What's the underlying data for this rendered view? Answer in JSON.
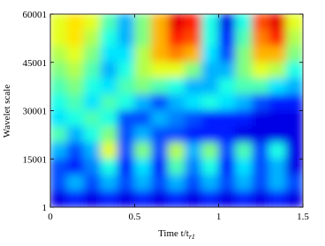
{
  "chart_data": {
    "type": "heatmap",
    "colormap": "jet",
    "xlabel": "Time t/t",
    "xlabel_subscript": "r1",
    "ylabel": "Wavelet scale",
    "xlim": [
      0,
      1.5
    ],
    "xticks": [
      0,
      0.5,
      1,
      1.5
    ],
    "ylim": [
      1,
      60001
    ],
    "yticks": [
      1,
      15001,
      30001,
      45001,
      60001
    ],
    "z": [
      [
        0.6,
        0.65,
        0.6,
        0.45,
        0.3,
        0.5,
        0.7,
        0.9,
        0.85,
        0.4,
        0.1,
        0.4,
        0.8,
        0.9,
        0.6
      ],
      [
        0.6,
        0.65,
        0.55,
        0.4,
        0.3,
        0.5,
        0.7,
        0.85,
        0.8,
        0.4,
        0.15,
        0.45,
        0.75,
        0.85,
        0.55
      ],
      [
        0.55,
        0.6,
        0.5,
        0.35,
        0.35,
        0.55,
        0.7,
        0.75,
        0.7,
        0.35,
        0.2,
        0.5,
        0.7,
        0.7,
        0.5
      ],
      [
        0.5,
        0.55,
        0.45,
        0.3,
        0.4,
        0.55,
        0.6,
        0.6,
        0.5,
        0.3,
        0.3,
        0.5,
        0.6,
        0.55,
        0.4
      ],
      [
        0.45,
        0.5,
        0.4,
        0.35,
        0.45,
        0.5,
        0.45,
        0.4,
        0.3,
        0.3,
        0.4,
        0.45,
        0.45,
        0.35,
        0.3
      ],
      [
        0.4,
        0.45,
        0.35,
        0.45,
        0.4,
        0.3,
        0.2,
        0.3,
        0.35,
        0.4,
        0.35,
        0.3,
        0.2,
        0.15,
        0.15
      ],
      [
        0.35,
        0.4,
        0.45,
        0.4,
        0.2,
        0.2,
        0.3,
        0.25,
        0.2,
        0.15,
        0.15,
        0.15,
        0.1,
        0.1,
        0.1
      ],
      [
        0.45,
        0.3,
        0.4,
        0.5,
        0.2,
        0.3,
        0.2,
        0.2,
        0.15,
        0.15,
        0.15,
        0.1,
        0.1,
        0.1,
        0.1
      ],
      [
        0.3,
        0.2,
        0.3,
        0.6,
        0.2,
        0.5,
        0.2,
        0.55,
        0.3,
        0.5,
        0.2,
        0.45,
        0.2,
        0.4,
        0.1
      ],
      [
        0.2,
        0.15,
        0.25,
        0.4,
        0.15,
        0.35,
        0.15,
        0.45,
        0.25,
        0.4,
        0.15,
        0.35,
        0.2,
        0.3,
        0.1
      ],
      [
        0.2,
        0.3,
        0.2,
        0.3,
        0.2,
        0.3,
        0.2,
        0.3,
        0.2,
        0.3,
        0.2,
        0.3,
        0.2,
        0.3,
        0.2
      ],
      [
        0.1,
        0.15,
        0.1,
        0.15,
        0.1,
        0.15,
        0.1,
        0.15,
        0.1,
        0.15,
        0.1,
        0.15,
        0.1,
        0.15,
        0.1
      ]
    ]
  }
}
